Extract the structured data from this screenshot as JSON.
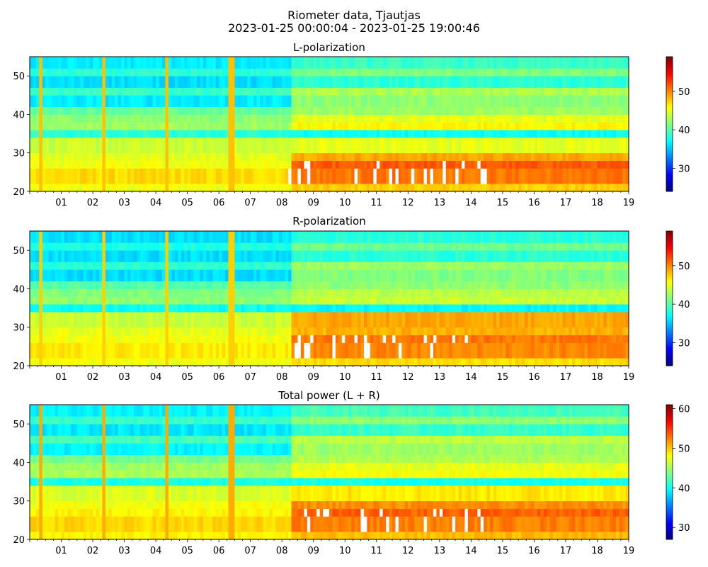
{
  "figure": {
    "title_line1": "Riometer data, Tjautjas",
    "title_line2": "2023-01-25 00:00:04 - 2023-01-25 19:00:46"
  },
  "colormap": "jet",
  "chart_data": [
    {
      "type": "heatmap",
      "title": "L-polarization",
      "xlabel": "",
      "ylabel": "",
      "x_unit": "hour of 2023-01-25",
      "xlim": [
        0,
        19
      ],
      "ylim": [
        20,
        55
      ],
      "x_ticks": [
        "01",
        "02",
        "03",
        "04",
        "05",
        "06",
        "07",
        "08",
        "09",
        "10",
        "11",
        "12",
        "13",
        "14",
        "15",
        "16",
        "17",
        "18",
        "19"
      ],
      "y_ticks": [
        20,
        30,
        40,
        50
      ],
      "colorbar": {
        "min": 24,
        "max": 59,
        "ticks": [
          30,
          40,
          50
        ]
      },
      "row_levels": [
        {
          "y": [
            20,
            22
          ],
          "before_0820": 45.5,
          "after_0820": 47.5
        },
        {
          "y": [
            22,
            26
          ],
          "before_0820": 47,
          "after_0820": 50.5
        },
        {
          "y": [
            26,
            28
          ],
          "before_0820": 45.5,
          "after_0820": 51.5
        },
        {
          "y": [
            28,
            30
          ],
          "before_0820": 45,
          "after_0820": 49
        },
        {
          "y": [
            30,
            34
          ],
          "before_0820": 44,
          "after_0820": 45
        },
        {
          "y": [
            34,
            36
          ],
          "before_0820": 38.5,
          "after_0820": 37.5
        },
        {
          "y": [
            36,
            38
          ],
          "before_0820": 42.5,
          "after_0820": 46
        },
        {
          "y": [
            38,
            40
          ],
          "before_0820": 42,
          "after_0820": 45
        },
        {
          "y": [
            40,
            42
          ],
          "before_0820": 40.5,
          "after_0820": 42.5
        },
        {
          "y": [
            42,
            45
          ],
          "before_0820": 36.5,
          "after_0820": 42
        },
        {
          "y": [
            45,
            47
          ],
          "before_0820": 39,
          "after_0820": 43
        },
        {
          "y": [
            47,
            50
          ],
          "before_0820": 36,
          "after_0820": 38.5
        },
        {
          "y": [
            50,
            52
          ],
          "before_0820": 38.5,
          "after_0820": 41.5
        },
        {
          "y": [
            52,
            55
          ],
          "before_0820": 36.5,
          "after_0820": 39
        }
      ],
      "vertical_stripes_hours": [
        0.35,
        2.35,
        4.35,
        6.4
      ],
      "stripe_value": 48,
      "saturated_region": {
        "x": [
          8.2,
          14.5
        ],
        "y": [
          21,
          29
        ],
        "value": "above max (white)"
      }
    },
    {
      "type": "heatmap",
      "title": "R-polarization",
      "xlabel": "",
      "ylabel": "",
      "x_unit": "hour of 2023-01-25",
      "xlim": [
        0,
        19
      ],
      "ylim": [
        20,
        55
      ],
      "x_ticks": [
        "01",
        "02",
        "03",
        "04",
        "05",
        "06",
        "07",
        "08",
        "09",
        "10",
        "11",
        "12",
        "13",
        "14",
        "15",
        "16",
        "17",
        "18",
        "19"
      ],
      "y_ticks": [
        20,
        30,
        40,
        50
      ],
      "colorbar": {
        "min": 24,
        "max": 59,
        "ticks": [
          30,
          40,
          50
        ]
      },
      "row_levels": [
        {
          "y": [
            20,
            22
          ],
          "before_0820": 45.5,
          "after_0820": 47
        },
        {
          "y": [
            22,
            26
          ],
          "before_0820": 46.5,
          "after_0820": 50
        },
        {
          "y": [
            26,
            28
          ],
          "before_0820": 45.5,
          "after_0820": 50.5
        },
        {
          "y": [
            28,
            30
          ],
          "before_0820": 45,
          "after_0820": 48.5
        },
        {
          "y": [
            30,
            34
          ],
          "before_0820": 44,
          "after_0820": 49
        },
        {
          "y": [
            34,
            36
          ],
          "before_0820": 37.5,
          "after_0820": 37
        },
        {
          "y": [
            36,
            38
          ],
          "before_0820": 42,
          "after_0820": 44
        },
        {
          "y": [
            38,
            40
          ],
          "before_0820": 41.5,
          "after_0820": 43.5
        },
        {
          "y": [
            40,
            42
          ],
          "before_0820": 40,
          "after_0820": 42
        },
        {
          "y": [
            42,
            45
          ],
          "before_0820": 36,
          "after_0820": 41.5
        },
        {
          "y": [
            45,
            47
          ],
          "before_0820": 38.5,
          "after_0820": 42.5
        },
        {
          "y": [
            47,
            50
          ],
          "before_0820": 36,
          "after_0820": 38.5
        },
        {
          "y": [
            50,
            52
          ],
          "before_0820": 38,
          "after_0820": 41
        },
        {
          "y": [
            52,
            55
          ],
          "before_0820": 36,
          "after_0820": 38.5
        }
      ],
      "vertical_stripes_hours": [
        0.35,
        2.35,
        4.35,
        6.4
      ],
      "stripe_value": 47.5,
      "saturated_region": {
        "x": [
          8.2,
          14.0
        ],
        "y": [
          21,
          28
        ],
        "value": "above max (white)"
      }
    },
    {
      "type": "heatmap",
      "title": "Total power (L + R)",
      "xlabel": "",
      "ylabel": "",
      "x_unit": "hour of 2023-01-25",
      "xlim": [
        0,
        19
      ],
      "ylim": [
        20,
        55
      ],
      "x_ticks": [
        "01",
        "02",
        "03",
        "04",
        "05",
        "06",
        "07",
        "08",
        "09",
        "10",
        "11",
        "12",
        "13",
        "14",
        "15",
        "16",
        "17",
        "18",
        "19"
      ],
      "y_ticks": [
        20,
        30,
        40,
        50
      ],
      "colorbar": {
        "min": 27,
        "max": 61,
        "ticks": [
          30,
          40,
          50,
          60
        ]
      },
      "row_levels": [
        {
          "y": [
            20,
            22
          ],
          "before_0820": 48.5,
          "after_0820": 50.5
        },
        {
          "y": [
            22,
            26
          ],
          "before_0820": 49.5,
          "after_0820": 52.5
        },
        {
          "y": [
            26,
            28
          ],
          "before_0820": 48.5,
          "after_0820": 53.5
        },
        {
          "y": [
            28,
            30
          ],
          "before_0820": 48,
          "after_0820": 52
        },
        {
          "y": [
            30,
            34
          ],
          "before_0820": 47,
          "after_0820": 49
        },
        {
          "y": [
            34,
            36
          ],
          "before_0820": 40.5,
          "after_0820": 40.5
        },
        {
          "y": [
            36,
            38
          ],
          "before_0820": 45.5,
          "after_0820": 48
        },
        {
          "y": [
            38,
            40
          ],
          "before_0820": 45,
          "after_0820": 47.5
        },
        {
          "y": [
            40,
            42
          ],
          "before_0820": 43.5,
          "after_0820": 45.5
        },
        {
          "y": [
            42,
            45
          ],
          "before_0820": 39.5,
          "after_0820": 45
        },
        {
          "y": [
            45,
            47
          ],
          "before_0820": 42,
          "after_0820": 46
        },
        {
          "y": [
            47,
            50
          ],
          "before_0820": 39,
          "after_0820": 41.5
        },
        {
          "y": [
            50,
            52
          ],
          "before_0820": 41.5,
          "after_0820": 44.5
        },
        {
          "y": [
            52,
            55
          ],
          "before_0820": 39.5,
          "after_0820": 42
        }
      ],
      "vertical_stripes_hours": [
        0.35,
        2.35,
        4.35,
        6.4
      ],
      "stripe_value": 51,
      "saturated_region": {
        "x": [
          8.2,
          14.5
        ],
        "y": [
          21,
          29
        ],
        "value": "above max (white)"
      }
    }
  ]
}
